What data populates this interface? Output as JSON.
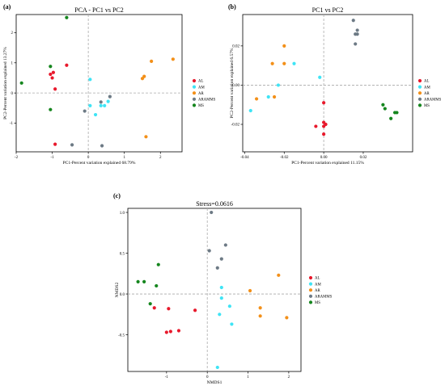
{
  "colors": {
    "AL": "#e8192c",
    "AM": "#3fe4f5",
    "AR": "#f39019",
    "ARAMMS": "#6d7a85",
    "MS": "#15861e"
  },
  "chart_data": [
    {
      "panel_label": "(a)",
      "type": "scatter",
      "title": "PCA - PC1 vs PC2",
      "xlabel": "PC1-Percent variation explained 68.79%",
      "ylabel": "PC2-Percent variation explained 13.27%",
      "xlim": [
        -2.0,
        2.6
      ],
      "ylim": [
        -1.95,
        2.6
      ],
      "xticks": [
        -2,
        -1,
        0,
        1,
        2
      ],
      "xtick_labels": [
        "-2",
        "-1",
        "0",
        "1",
        "2"
      ],
      "yticks": [
        -1,
        0,
        1,
        2
      ],
      "ytick_labels": [
        "-1",
        "0",
        "1",
        "2"
      ],
      "reference_lines": {
        "x": 0,
        "y": 0
      },
      "legend": [
        "AL",
        "AM",
        "AR",
        "ARAMMS",
        "MS"
      ],
      "legend_position": "right",
      "series": [
        {
          "name": "AL",
          "points": [
            [
              -1.05,
              0.62
            ],
            [
              -0.97,
              0.68
            ],
            [
              -1.0,
              0.5
            ],
            [
              -0.92,
              0.13
            ],
            [
              -0.6,
              0.92
            ],
            [
              -0.92,
              -1.7
            ]
          ]
        },
        {
          "name": "AM",
          "points": [
            [
              0.05,
              0.45
            ],
            [
              0.05,
              -0.42
            ],
            [
              0.2,
              -0.72
            ],
            [
              0.35,
              -0.42
            ],
            [
              0.45,
              -0.42
            ],
            [
              0.55,
              -0.28
            ]
          ]
        },
        {
          "name": "AR",
          "points": [
            [
              1.5,
              0.48
            ],
            [
              1.55,
              0.55
            ],
            [
              1.75,
              1.05
            ],
            [
              2.35,
              1.12
            ],
            [
              1.6,
              -1.45
            ]
          ]
        },
        {
          "name": "ARAMMS",
          "points": [
            [
              0.35,
              -0.3
            ],
            [
              0.6,
              -0.12
            ],
            [
              -0.1,
              -0.6
            ],
            [
              -0.45,
              -1.72
            ],
            [
              0.38,
              -1.75
            ]
          ]
        },
        {
          "name": "MS",
          "points": [
            [
              -0.6,
              2.5
            ],
            [
              -1.05,
              0.88
            ],
            [
              -1.05,
              -0.55
            ],
            [
              -1.85,
              0.33
            ]
          ]
        }
      ]
    },
    {
      "panel_label": "(b)",
      "type": "scatter",
      "title": "PC1 vs PC2",
      "xlabel": "PC1-Percent variation explained 11.15%",
      "ylabel": "PC2-Percent variation explained 6.57%",
      "xlim": [
        -0.041,
        0.045
      ],
      "ylim": [
        -0.034,
        0.036
      ],
      "xticks": [
        -0.04,
        -0.02,
        0.0,
        0.02
      ],
      "xtick_labels": [
        "-0.04",
        "-0.02",
        "0.00",
        "0.02"
      ],
      "yticks": [
        -0.02,
        0.0,
        0.02
      ],
      "ytick_labels": [
        "-0.02",
        "0.00",
        "0.02"
      ],
      "reference_lines": {
        "x": 0,
        "y": 0
      },
      "legend": [
        "AL",
        "AM",
        "AR",
        "ARAMMS",
        "MS"
      ],
      "legend_position": "right",
      "series": [
        {
          "name": "AL",
          "points": [
            [
              0.0,
              -0.009
            ],
            [
              0.0,
              -0.019
            ],
            [
              0.001,
              -0.02
            ],
            [
              0.0,
              -0.021
            ],
            [
              -0.004,
              -0.021
            ],
            [
              0.0,
              -0.025
            ]
          ]
        },
        {
          "name": "AM",
          "points": [
            [
              -0.015,
              0.011
            ],
            [
              -0.023,
              0.0
            ],
            [
              -0.028,
              -0.006
            ],
            [
              -0.037,
              -0.013
            ],
            [
              -0.002,
              0.004
            ]
          ]
        },
        {
          "name": "AR",
          "points": [
            [
              -0.02,
              0.02
            ],
            [
              -0.02,
              0.011
            ],
            [
              -0.026,
              0.011
            ],
            [
              -0.025,
              -0.006
            ],
            [
              -0.034,
              -0.007
            ]
          ]
        },
        {
          "name": "ARAMMS",
          "points": [
            [
              0.015,
              0.033
            ],
            [
              0.017,
              0.028
            ],
            [
              0.016,
              0.026
            ],
            [
              0.017,
              0.026
            ],
            [
              0.016,
              0.021
            ]
          ]
        },
        {
          "name": "MS",
          "points": [
            [
              0.03,
              -0.01
            ],
            [
              0.031,
              -0.012
            ],
            [
              0.034,
              -0.017
            ],
            [
              0.037,
              -0.014
            ],
            [
              0.036,
              -0.014
            ]
          ]
        }
      ]
    },
    {
      "panel_label": "(c)",
      "type": "scatter",
      "title": "Stress=0.0616",
      "xlabel": "NMDS1",
      "ylabel": "NMDS2",
      "xlim": [
        -1.95,
        2.3
      ],
      "ylim": [
        -0.95,
        1.05
      ],
      "xticks": [
        -1,
        0,
        1,
        2
      ],
      "xtick_labels": [
        "-1",
        "0",
        "1",
        "2"
      ],
      "yticks": [
        -0.5,
        0.0,
        0.5,
        1.0
      ],
      "ytick_labels": [
        "-0.5",
        "0.0",
        "0.5",
        "1.0"
      ],
      "reference_lines": {
        "x": 0,
        "y": 0
      },
      "legend": [
        "AL",
        "AM",
        "AR",
        "ARAMMS",
        "MS"
      ],
      "legend_position": "right",
      "series": [
        {
          "name": "AL",
          "points": [
            [
              -1.3,
              -0.17
            ],
            [
              -0.95,
              -0.18
            ],
            [
              -0.3,
              -0.2
            ],
            [
              -1.0,
              -0.47
            ],
            [
              -0.9,
              -0.46
            ],
            [
              -0.7,
              -0.45
            ]
          ]
        },
        {
          "name": "AM",
          "points": [
            [
              0.35,
              0.08
            ],
            [
              0.35,
              -0.05
            ],
            [
              0.55,
              -0.15
            ],
            [
              0.6,
              -0.37
            ],
            [
              0.3,
              -0.25
            ],
            [
              0.25,
              -0.9
            ]
          ]
        },
        {
          "name": "AR",
          "points": [
            [
              1.05,
              0.04
            ],
            [
              1.75,
              0.23
            ],
            [
              1.3,
              -0.17
            ],
            [
              1.3,
              -0.27
            ],
            [
              1.95,
              -0.29
            ]
          ]
        },
        {
          "name": "ARAMMS",
          "points": [
            [
              0.1,
              1.0
            ],
            [
              0.45,
              0.6
            ],
            [
              0.35,
              0.43
            ],
            [
              0.25,
              0.32
            ],
            [
              0.05,
              0.53
            ]
          ]
        },
        {
          "name": "MS",
          "points": [
            [
              -1.7,
              0.15
            ],
            [
              -1.55,
              0.15
            ],
            [
              -1.2,
              0.36
            ],
            [
              -1.25,
              0.1
            ],
            [
              -1.4,
              -0.12
            ]
          ]
        }
      ]
    }
  ]
}
